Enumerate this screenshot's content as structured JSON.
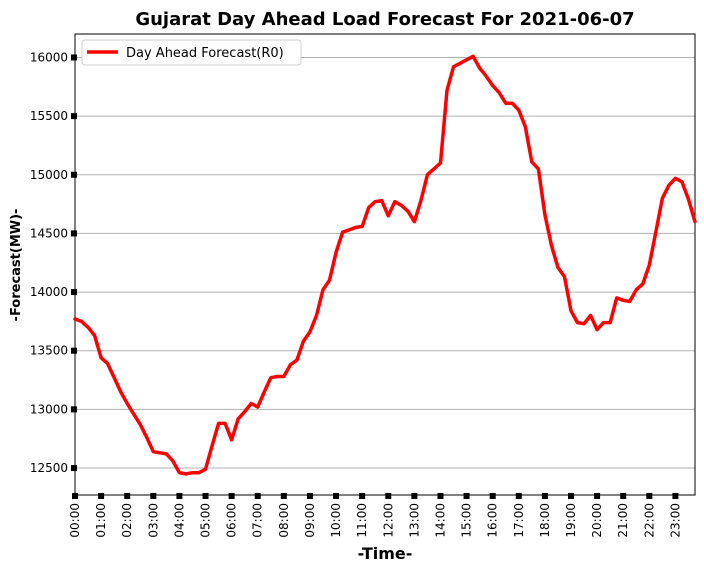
{
  "chart_data": {
    "type": "line",
    "title": "Gujarat Day Ahead Load Forecast For 2021-06-07",
    "xlabel": "-Time-",
    "ylabel": "-Forecast(MW)-",
    "legend": {
      "position": "top-left",
      "entries": [
        "Day Ahead Forecast(R0)"
      ]
    },
    "grid": "horizontal",
    "xlim": [
      0,
      95
    ],
    "ylim": [
      12270,
      16200
    ],
    "x_tick_labels": [
      "00:00",
      "01:00",
      "02:00",
      "03:00",
      "04:00",
      "05:00",
      "06:00",
      "07:00",
      "08:00",
      "09:00",
      "10:00",
      "11:00",
      "12:00",
      "13:00",
      "14:00",
      "15:00",
      "16:00",
      "17:00",
      "18:00",
      "19:00",
      "20:00",
      "21:00",
      "22:00",
      "23:00"
    ],
    "y_ticks": [
      12500,
      13000,
      13500,
      14000,
      14500,
      15000,
      15500,
      16000
    ],
    "series": [
      {
        "name": "Day Ahead Forecast(R0)",
        "color": "#ff0000",
        "values": [
          13770,
          13750,
          13700,
          13630,
          13440,
          13390,
          13270,
          13150,
          13050,
          12960,
          12870,
          12760,
          12640,
          12630,
          12620,
          12560,
          12460,
          12450,
          12460,
          12460,
          12490,
          12690,
          12880,
          12880,
          12740,
          12920,
          12980,
          13050,
          13020,
          13150,
          13270,
          13280,
          13280,
          13380,
          13420,
          13580,
          13660,
          13800,
          14020,
          14100,
          14340,
          14510,
          14530,
          14550,
          14560,
          14720,
          14770,
          14780,
          14650,
          14770,
          14740,
          14690,
          14600,
          14780,
          15000,
          15050,
          15100,
          15720,
          15920,
          15950,
          15980,
          16010,
          15910,
          15840,
          15760,
          15700,
          15610,
          15610,
          15550,
          15410,
          15110,
          15050,
          14660,
          14400,
          14210,
          14130,
          13840,
          13740,
          13730,
          13800,
          13680,
          13740,
          13740,
          13950,
          13930,
          13920,
          14020,
          14070,
          14230,
          14510,
          14800,
          14910,
          14970,
          14940,
          14790,
          14600
        ]
      }
    ]
  }
}
